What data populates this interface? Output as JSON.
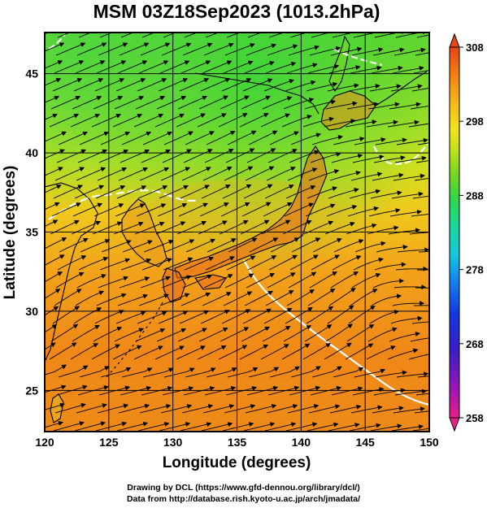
{
  "map": {
    "title": "MSM 03Z18Sep2023 (1013.2hPa)",
    "xlabel": "Longitude (degrees)",
    "ylabel": "Latitude  (degrees)",
    "lon_range": [
      120,
      150
    ],
    "lat_range": [
      22.4,
      47.6
    ],
    "lon_ticks": [
      "120",
      "125",
      "130",
      "135",
      "140",
      "145",
      "150"
    ],
    "lat_ticks": [
      "25",
      "30",
      "35",
      "40",
      "45"
    ],
    "lon_tick_values": [
      120,
      125,
      130,
      135,
      140,
      145,
      150
    ],
    "lat_tick_values": [
      25,
      30,
      35,
      40,
      45
    ],
    "grid": true,
    "field": "temperature (K) shaded with surface wind streamlines"
  },
  "colorbar": {
    "ticks": [
      "308",
      "298",
      "288",
      "278",
      "268",
      "258"
    ],
    "tick_values": [
      308,
      298,
      288,
      278,
      268,
      258
    ],
    "range": [
      258,
      308
    ],
    "colors": [
      "#e81f8a",
      "#9a16b8",
      "#3c1cc8",
      "#1438e0",
      "#1284f0",
      "#14c8dc",
      "#1cd89a",
      "#2ed848",
      "#7ad622",
      "#c8e21c",
      "#f4e21c",
      "#f8b81a",
      "#f47c14",
      "#e84414"
    ]
  },
  "credits": {
    "line1": "Drawing by DCL (https://www.gfd-dennou.org/library/dcl/)",
    "line2": "Data from http://database.rish.kyoto-u.ac.jp/arch/jmadata/"
  }
}
